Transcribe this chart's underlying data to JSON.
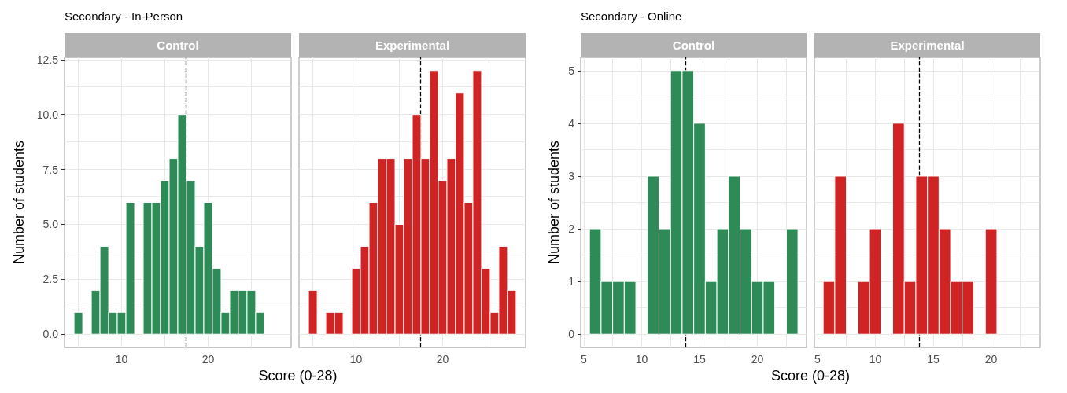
{
  "chart_data": [
    {
      "type": "histogram",
      "title": "Secondary - In-Person",
      "subtitle": "Control",
      "xlabel": "Score (0-28)",
      "ylabel": "Number of students",
      "color": "#2e8b57",
      "bins": [
        4.5,
        5.5,
        6.5,
        7.5,
        8.5,
        9.5,
        10.5,
        11.5,
        12.5,
        13.5,
        14.5,
        15.5,
        16.5,
        17.5,
        18.5,
        19.5,
        20.5,
        21.5,
        22.5,
        23.5,
        24.5,
        25.5,
        26.5
      ],
      "values": [
        1,
        0,
        2,
        4,
        1,
        1,
        6,
        0,
        6,
        6,
        7,
        8,
        10,
        7,
        4,
        6,
        3,
        1,
        2,
        2,
        2,
        1
      ],
      "xlim": [
        3.4,
        29.6
      ],
      "ylim": [
        -0.6,
        12.6
      ],
      "xticks": [
        {
          "value": 5,
          "label": null
        },
        10,
        {
          "value": 15,
          "label": null
        },
        20,
        {
          "value": 25,
          "label": null
        }
      ],
      "yticks": [
        {
          "value": 0,
          "label": "0.0"
        },
        {
          "value": 1.25,
          "label": null
        },
        {
          "value": 2.5,
          "label": "2.5"
        },
        {
          "value": 3.75,
          "label": null
        },
        {
          "value": 5,
          "label": "5.0"
        },
        {
          "value": 6.25,
          "label": null
        },
        {
          "value": 7.5,
          "label": "7.5"
        },
        {
          "value": 8.75,
          "label": null
        },
        {
          "value": 10,
          "label": "10.0"
        },
        {
          "value": 11.25,
          "label": null
        },
        {
          "value": 12.5,
          "label": "12.5"
        }
      ],
      "grid": true,
      "ref_lines": [
        {
          "axis": "x",
          "value": 17.4,
          "color": "#000000",
          "line_style": "dashed"
        }
      ]
    },
    {
      "type": "histogram",
      "subtitle": "Experimental",
      "color": "#d02323",
      "bins": [
        4.5,
        5.5,
        6.5,
        7.5,
        8.5,
        9.5,
        10.5,
        11.5,
        12.5,
        13.5,
        14.5,
        15.5,
        16.5,
        17.5,
        18.5,
        19.5,
        20.5,
        21.5,
        22.5,
        23.5,
        24.5,
        25.5,
        26.5,
        27.5,
        28.5
      ],
      "values": [
        2,
        0,
        1,
        1,
        0,
        3,
        4,
        6,
        8,
        8,
        5,
        8,
        10,
        8,
        12,
        7,
        8,
        11,
        6,
        12,
        3,
        1,
        4,
        2
      ],
      "xlim": [
        3.4,
        29.6
      ],
      "ylim": [
        -0.6,
        12.6
      ],
      "xticks": [
        {
          "value": 5,
          "label": null
        },
        10,
        {
          "value": 15,
          "label": null
        },
        20,
        {
          "value": 25,
          "label": null
        }
      ],
      "yticks": [
        0,
        1.25,
        2.5,
        3.75,
        5,
        6.25,
        7.5,
        8.75,
        10,
        11.25,
        12.5
      ],
      "tick_labels": "x",
      "grid": true,
      "ref_lines": [
        {
          "axis": "x",
          "value": 17.4,
          "color": "#000000",
          "line_style": "dashed"
        }
      ]
    },
    {
      "type": "histogram",
      "title": "Secondary - Online",
      "subtitle": "Control",
      "xlabel": "Score (0-28)",
      "ylabel": "Number of students",
      "color": "#2e8b57",
      "bins": [
        5.5,
        6.5,
        7.5,
        8.5,
        9.5,
        10.5,
        11.5,
        12.5,
        13.5,
        14.5,
        15.5,
        16.5,
        17.5,
        18.5,
        19.5,
        20.5,
        21.5,
        22.5,
        23.5
      ],
      "values": [
        2,
        1,
        1,
        1,
        0,
        3,
        2,
        5,
        5,
        4,
        1,
        2,
        3,
        2,
        1,
        1,
        0,
        2
      ],
      "xlim": [
        4.74,
        24.24
      ],
      "ylim": [
        -0.25,
        5.25
      ],
      "xticks": [
        5,
        {
          "value": 7.5,
          "label": null
        },
        10,
        {
          "value": 12.5,
          "label": null
        },
        15,
        {
          "value": 17.5,
          "label": null
        },
        20,
        {
          "value": 22.5,
          "label": null
        }
      ],
      "yticks": [
        0,
        {
          "value": 0.5,
          "label": null
        },
        1,
        {
          "value": 1.5,
          "label": null
        },
        2,
        {
          "value": 2.5,
          "label": null
        },
        3,
        {
          "value": 3.5,
          "label": null
        },
        4,
        {
          "value": 4.5,
          "label": null
        },
        5
      ],
      "grid": true,
      "ref_lines": [
        {
          "axis": "x",
          "value": 13.8,
          "color": "#000000",
          "line_style": "dashed"
        }
      ]
    },
    {
      "type": "histogram",
      "subtitle": "Experimental",
      "color": "#d02323",
      "bins": [
        5.5,
        6.5,
        7.5,
        8.5,
        9.5,
        10.5,
        11.5,
        12.5,
        13.5,
        14.5,
        15.5,
        16.5,
        17.5,
        18.5,
        19.5,
        20.5
      ],
      "values": [
        1,
        3,
        0,
        1,
        2,
        0,
        4,
        1,
        3,
        3,
        2,
        1,
        1,
        0,
        2
      ],
      "xlim": [
        4.74,
        24.24
      ],
      "ylim": [
        -0.25,
        5.25
      ],
      "xticks": [
        5,
        {
          "value": 7.5,
          "label": null
        },
        10,
        {
          "value": 12.5,
          "label": null
        },
        15,
        {
          "value": 17.5,
          "label": null
        },
        20,
        {
          "value": 22.5,
          "label": null
        }
      ],
      "yticks": [
        0,
        0.5,
        1,
        1.5,
        2,
        2.5,
        3,
        3.5,
        4,
        4.5,
        5
      ],
      "tick_labels": "x",
      "grid": true,
      "ref_lines": [
        {
          "axis": "x",
          "value": 13.8,
          "color": "#000000",
          "line_style": "dashed"
        }
      ]
    }
  ]
}
